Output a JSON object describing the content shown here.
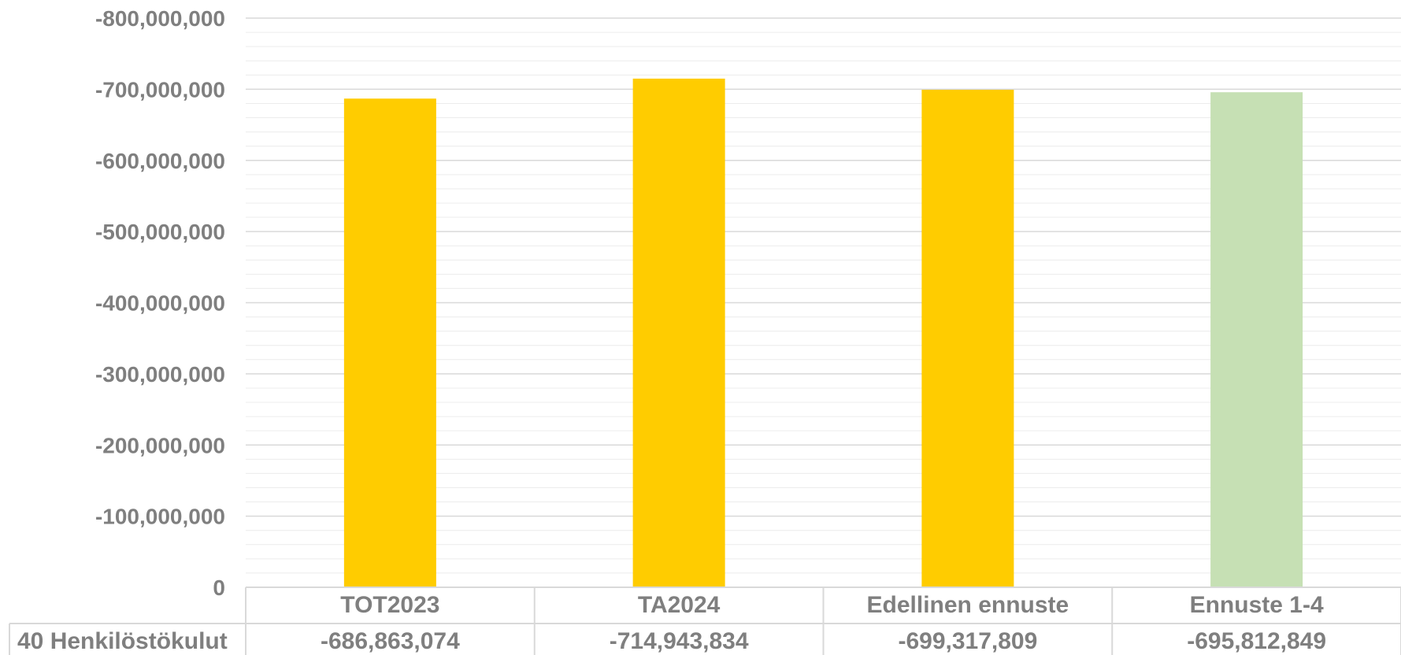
{
  "chart_data": {
    "type": "bar",
    "categories": [
      "TOT2023",
      "TA2024",
      "Edellinen ennuste",
      "Ennuste 1-4"
    ],
    "series": [
      {
        "name": "40 Henkilöstökulut",
        "values": [
          -686863074,
          -714943834,
          -699317809,
          -695812849
        ],
        "value_labels": [
          "-686,863,074",
          "-714,943,834",
          "-699,317,809",
          "-695,812,849"
        ],
        "colors": [
          "#ffcc00",
          "#ffcc00",
          "#ffcc00",
          "#c6e0b4"
        ]
      }
    ],
    "yaxis": {
      "reversed": true,
      "range": [
        0,
        -800000000
      ],
      "ticks": [
        0,
        -100000000,
        -200000000,
        -300000000,
        -400000000,
        -500000000,
        -600000000,
        -700000000,
        -800000000
      ],
      "tick_labels": [
        "0",
        "-100,000,000",
        "-200,000,000",
        "-300,000,000",
        "-400,000,000",
        "-500,000,000",
        "-600,000,000",
        "-700,000,000",
        "-800,000,000"
      ],
      "major_grid": true,
      "minor_grid": true,
      "minor_step": 20000000
    },
    "data_table": true,
    "legend": "none",
    "gridline_color": "#d9d9d9",
    "table_border_color": "#d9d9d9",
    "text_color": "#7f7f7f"
  }
}
